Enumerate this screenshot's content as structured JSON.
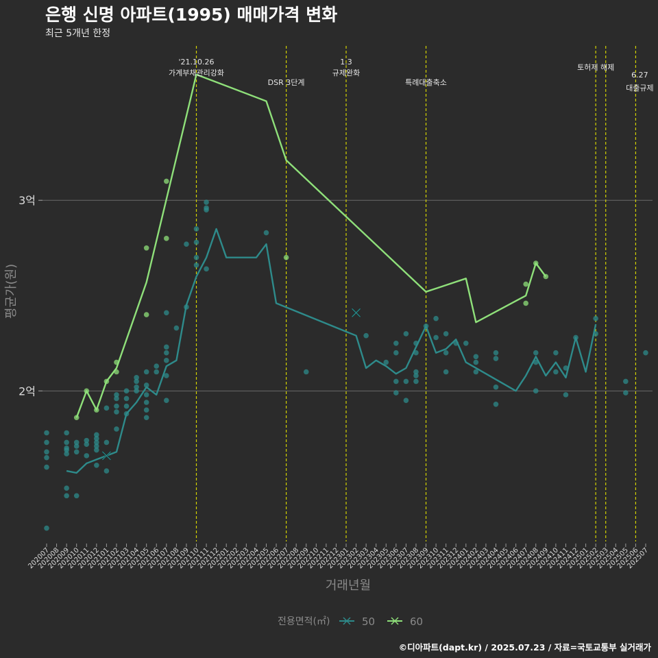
{
  "title": "은행 신명 아파트(1995) 매매가격 변화",
  "subtitle": "최근 5개년 한정",
  "caption": "©디아파트(dapt.kr) / 2025.07.23 / 자료=국토교통부 실거래가",
  "colors": {
    "background": "#2b2b2b",
    "series_50": "#2e8b8b",
    "series_60": "#8fe07a",
    "vline": "#d4d400",
    "grid": "#6a6a6a"
  },
  "chart_data": {
    "type": "line",
    "xlabel": "거래년월",
    "ylabel": "평균가(원)",
    "x_categories": [
      "202007",
      "202008",
      "202009",
      "202010",
      "202011",
      "202012",
      "202101",
      "202102",
      "202103",
      "202104",
      "202105",
      "202106",
      "202107",
      "202108",
      "202109",
      "202110",
      "202111",
      "202112",
      "202201",
      "202202",
      "202203",
      "202204",
      "202205",
      "202206",
      "202207",
      "202208",
      "202209",
      "202210",
      "202211",
      "202212",
      "202301",
      "202302",
      "202303",
      "202304",
      "202305",
      "202306",
      "202307",
      "202308",
      "202309",
      "202310",
      "202311",
      "202312",
      "202401",
      "202402",
      "202403",
      "202404",
      "202405",
      "202406",
      "202407",
      "202408",
      "202409",
      "202410",
      "202411",
      "202412",
      "202501",
      "202502",
      "202503",
      "202504",
      "202505",
      "202506",
      "202507"
    ],
    "y_ticks": [
      {
        "value": 2,
        "label": "2억"
      },
      {
        "value": 3,
        "label": "3억"
      }
    ],
    "ylim": [
      1.21,
      3.81
    ],
    "legend": {
      "title": "전용면적(㎡)",
      "position": "bottom",
      "items": [
        "50",
        "60"
      ]
    },
    "series": [
      {
        "name": "50",
        "color": "#2e8b8b",
        "line": [
          [
            "202009",
            1.58
          ],
          [
            "202010",
            1.57
          ],
          [
            "202011",
            1.62
          ],
          [
            "202012",
            1.64
          ],
          [
            "202101",
            1.66
          ],
          [
            "202102",
            1.68
          ],
          [
            "202103",
            1.88
          ],
          [
            "202104",
            1.94
          ],
          [
            "202105",
            2.02
          ],
          [
            "202106",
            1.98
          ],
          [
            "202107",
            2.13
          ],
          [
            "202108",
            2.16
          ],
          [
            "202109",
            2.45
          ],
          [
            "202110",
            2.6
          ],
          [
            "202111",
            2.7
          ],
          [
            "202112",
            2.85
          ],
          [
            "202201",
            2.7
          ],
          [
            "202202",
            2.7
          ],
          [
            "202204",
            2.7
          ],
          [
            "202205",
            2.77
          ],
          [
            "202206",
            2.46
          ],
          [
            "202302",
            2.29
          ],
          [
            "202303",
            2.12
          ],
          [
            "202304",
            2.16
          ],
          [
            "202305",
            2.13
          ],
          [
            "202306",
            2.09
          ],
          [
            "202307",
            2.12
          ],
          [
            "202309",
            2.34
          ],
          [
            "202310",
            2.2
          ],
          [
            "202311",
            2.22
          ],
          [
            "202312",
            2.27
          ],
          [
            "202401",
            2.15
          ],
          [
            "202406",
            2
          ],
          [
            "202407",
            2.08
          ],
          [
            "202408",
            2.18
          ],
          [
            "202409",
            2.08
          ],
          [
            "202410",
            2.15
          ],
          [
            "202411",
            2.07
          ],
          [
            "202412",
            2.28
          ],
          [
            "202501",
            2.1
          ],
          [
            "202502",
            2.35
          ]
        ],
        "points": [
          [
            "202007",
            1.78
          ],
          [
            "202007",
            1.73
          ],
          [
            "202007",
            1.68
          ],
          [
            "202007",
            1.65
          ],
          [
            "202007",
            1.6
          ],
          [
            "202007",
            1.28
          ],
          [
            "202009",
            1.78
          ],
          [
            "202009",
            1.73
          ],
          [
            "202009",
            1.7
          ],
          [
            "202009",
            1.69
          ],
          [
            "202009",
            1.67
          ],
          [
            "202009",
            1.49
          ],
          [
            "202009",
            1.45
          ],
          [
            "202010",
            1.73
          ],
          [
            "202010",
            1.71
          ],
          [
            "202010",
            1.68
          ],
          [
            "202010",
            1.45
          ],
          [
            "202011",
            1.74
          ],
          [
            "202011",
            1.72
          ],
          [
            "202011",
            1.66
          ],
          [
            "202012",
            1.77
          ],
          [
            "202012",
            1.75
          ],
          [
            "202012",
            1.73
          ],
          [
            "202012",
            1.71
          ],
          [
            "202012",
            1.69
          ],
          [
            "202012",
            1.61
          ],
          [
            "202101",
            1.91
          ],
          [
            "202101",
            1.73
          ],
          [
            "202101",
            1.58
          ],
          [
            "202102",
            1.98
          ],
          [
            "202102",
            1.96
          ],
          [
            "202102",
            1.92
          ],
          [
            "202102",
            1.89
          ],
          [
            "202102",
            1.8
          ],
          [
            "202103",
            2
          ],
          [
            "202103",
            1.96
          ],
          [
            "202103",
            1.92
          ],
          [
            "202103",
            1.88
          ],
          [
            "202104",
            2.07
          ],
          [
            "202104",
            2.05
          ],
          [
            "202104",
            2.02
          ],
          [
            "202104",
            2
          ],
          [
            "202105",
            2.1
          ],
          [
            "202105",
            2.03
          ],
          [
            "202105",
            1.98
          ],
          [
            "202105",
            1.94
          ],
          [
            "202105",
            1.9
          ],
          [
            "202105",
            1.86
          ],
          [
            "202106",
            2.13
          ],
          [
            "202106",
            2.1
          ],
          [
            "202107",
            2.41
          ],
          [
            "202107",
            2.23
          ],
          [
            "202107",
            2.2
          ],
          [
            "202107",
            2.16
          ],
          [
            "202107",
            2.08
          ],
          [
            "202107",
            1.95
          ],
          [
            "202108",
            2.33
          ],
          [
            "202109",
            2.77
          ],
          [
            "202109",
            2.44
          ],
          [
            "202110",
            2.85
          ],
          [
            "202110",
            2.78
          ],
          [
            "202110",
            2.7
          ],
          [
            "202110",
            2.66
          ],
          [
            "202111",
            2.99
          ],
          [
            "202111",
            2.96
          ],
          [
            "202111",
            2.95
          ],
          [
            "202111",
            2.64
          ],
          [
            "202205",
            2.83
          ],
          [
            "202209",
            2.1
          ],
          [
            "202303",
            2.29
          ],
          [
            "202305",
            2.15
          ],
          [
            "202306",
            2.2
          ],
          [
            "202306",
            2.25
          ],
          [
            "202306",
            2.05
          ],
          [
            "202306",
            1.99
          ],
          [
            "202307",
            2.3
          ],
          [
            "202307",
            2.05
          ],
          [
            "202307",
            1.95
          ],
          [
            "202308",
            2.25
          ],
          [
            "202308",
            2.2
          ],
          [
            "202308",
            2.1
          ],
          [
            "202308",
            2.08
          ],
          [
            "202308",
            2.05
          ],
          [
            "202309",
            2.34
          ],
          [
            "202310",
            2.38
          ],
          [
            "202310",
            2.28
          ],
          [
            "202311",
            2.3
          ],
          [
            "202311",
            2.2
          ],
          [
            "202311",
            2.1
          ],
          [
            "202312",
            2.25
          ],
          [
            "202401",
            2.25
          ],
          [
            "202402",
            2.18
          ],
          [
            "202402",
            2.15
          ],
          [
            "202402",
            2.1
          ],
          [
            "202404",
            2.2
          ],
          [
            "202404",
            2.17
          ],
          [
            "202404",
            2.02
          ],
          [
            "202404",
            1.93
          ],
          [
            "202408",
            2.2
          ],
          [
            "202408",
            2.15
          ],
          [
            "202408",
            2
          ],
          [
            "202410",
            2.2
          ],
          [
            "202410",
            2.1
          ],
          [
            "202411",
            2.12
          ],
          [
            "202411",
            1.98
          ],
          [
            "202412",
            2.28
          ],
          [
            "202502",
            2.38
          ],
          [
            "202502",
            2.3
          ],
          [
            "202505",
            2.05
          ],
          [
            "202505",
            1.99
          ],
          [
            "202507",
            2.2
          ]
        ],
        "marker_x": [
          [
            "202101",
            1.66
          ],
          [
            "202302",
            2.41
          ]
        ]
      },
      {
        "name": "60",
        "color": "#8fe07a",
        "line": [
          [
            "202010",
            1.86
          ],
          [
            "202011",
            2
          ],
          [
            "202012",
            1.9
          ],
          [
            "202101",
            2.05
          ],
          [
            "202102",
            2.12
          ],
          [
            "202105",
            2.57
          ],
          [
            "202110",
            3.66
          ],
          [
            "202205",
            3.52
          ],
          [
            "202207",
            3.21
          ],
          [
            "202309",
            2.52
          ],
          [
            "202401",
            2.59
          ],
          [
            "202402",
            2.36
          ],
          [
            "202407",
            2.5
          ],
          [
            "202408",
            2.67
          ],
          [
            "202409",
            2.6
          ]
        ],
        "points": [
          [
            "202010",
            1.86
          ],
          [
            "202011",
            2
          ],
          [
            "202012",
            1.9
          ],
          [
            "202101",
            2.05
          ],
          [
            "202102",
            2.15
          ],
          [
            "202102",
            2.1
          ],
          [
            "202105",
            2.75
          ],
          [
            "202105",
            2.4
          ],
          [
            "202107",
            3.1
          ],
          [
            "202107",
            2.8
          ],
          [
            "202207",
            2.7
          ],
          [
            "202407",
            2.56
          ],
          [
            "202407",
            2.46
          ],
          [
            "202408",
            2.67
          ],
          [
            "202409",
            2.6
          ]
        ],
        "marker_x": []
      }
    ],
    "annotations": [
      {
        "x": "202110",
        "lines": [
          "'21.10.26",
          "가계부채관리강화"
        ]
      },
      {
        "x": "202207",
        "lines": [
          "DSR 3단계"
        ]
      },
      {
        "x": "202301",
        "lines": [
          "1.3",
          "규제완화"
        ]
      },
      {
        "x": "202309",
        "lines": [
          "특례대출축소"
        ]
      },
      {
        "x": "202502",
        "lines": [
          "토허제 해제"
        ]
      },
      {
        "x": "202503",
        "lines": []
      },
      {
        "x": "202506",
        "lines": [
          "6.27",
          "대출규제"
        ]
      }
    ]
  }
}
